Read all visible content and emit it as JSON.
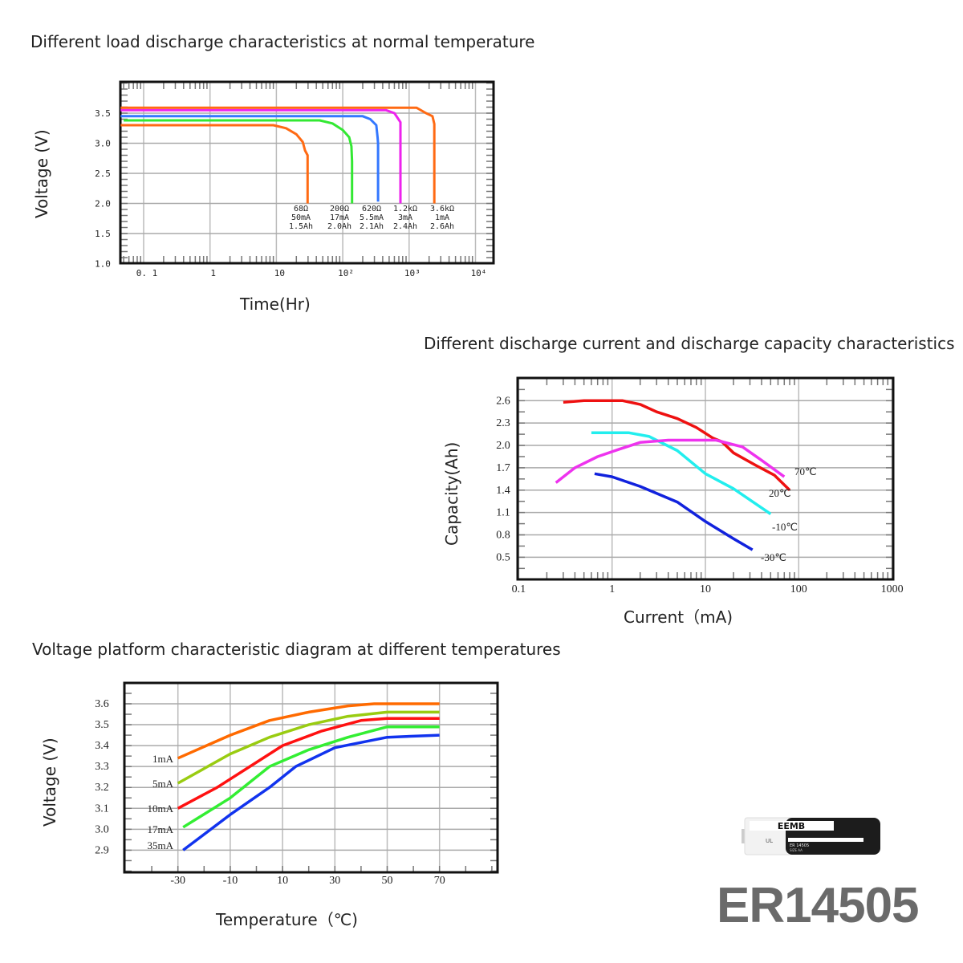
{
  "product_name": "ER14505",
  "battery_image": {
    "brand": "EEMB",
    "model": "ER 14505",
    "size": "SIZE AA",
    "voltage": "3.6 Volts",
    "tagline": "NEW CONCEPT OF LITHIUM BATTERY"
  },
  "chart_data": [
    {
      "type": "line",
      "title": "Different load discharge characteristics at normal temperature",
      "xlabel": "Time(Hr)",
      "ylabel": "Voltage  (V)",
      "x_scale": "log",
      "xlim": [
        0.045,
        13000
      ],
      "ylim": [
        1.0,
        4.0
      ],
      "x_ticks": [
        0.1,
        1,
        10,
        100,
        1000,
        10000
      ],
      "x_tick_labels": [
        "0. 1",
        "1",
        "10",
        "10²",
        "10³",
        "10⁴"
      ],
      "y_ticks": [
        3.5,
        3.0,
        2.5,
        2.0,
        1.5,
        1.0
      ],
      "y_tick_labels": [
        "3.5",
        "3.0",
        "2.5",
        "2.0",
        "1.5",
        "1.0"
      ],
      "grid": true,
      "series": [
        {
          "label": [
            "68Ω",
            "50mA",
            "1.5Ah"
          ],
          "color": "#ff6a13",
          "points": [
            [
              0.045,
              3.3
            ],
            [
              9,
              3.3
            ],
            [
              14,
              3.25
            ],
            [
              20,
              3.15
            ],
            [
              25,
              3.02
            ],
            [
              27,
              2.88
            ],
            [
              29.5,
              2.8
            ],
            [
              29.5,
              2.0
            ]
          ]
        },
        {
          "label": [
            "200Ω",
            "17mA",
            "2.0Ah"
          ],
          "color": "#33e833",
          "points": [
            [
              0.05,
              3.38
            ],
            [
              45,
              3.38
            ],
            [
              70,
              3.33
            ],
            [
              100,
              3.22
            ],
            [
              125,
              3.1
            ],
            [
              135,
              2.95
            ],
            [
              138,
              2.7
            ],
            [
              138,
              2.0
            ]
          ]
        },
        {
          "label": [
            "620Ω",
            "5.5mA",
            "2.1Ah"
          ],
          "color": "#3377ff",
          "points": [
            [
              0.045,
              3.45
            ],
            [
              200,
              3.45
            ],
            [
              260,
              3.4
            ],
            [
              320,
              3.3
            ],
            [
              335,
              3.1
            ],
            [
              340,
              3.0
            ],
            [
              340,
              2.03
            ]
          ]
        },
        {
          "label": [
            "1.2kΩ",
            "3mA",
            "2.4Ah"
          ],
          "color": "#ee22ee",
          "points": [
            [
              0.045,
              3.55
            ],
            [
              450,
              3.55
            ],
            [
              600,
              3.5
            ],
            [
              740,
              3.35
            ],
            [
              740,
              2.0
            ]
          ]
        },
        {
          "label": [
            "3.6kΩ",
            "1mA",
            "2.6Ah"
          ],
          "color": "#ff6a13",
          "points": [
            [
              0.045,
              3.59
            ],
            [
              1300,
              3.59
            ],
            [
              1800,
              3.5
            ],
            [
              2250,
              3.45
            ],
            [
              2400,
              3.32
            ],
            [
              2400,
              2.0
            ]
          ]
        }
      ]
    },
    {
      "type": "line",
      "title": "Different discharge current and discharge capacity characteristics",
      "xlabel": "Current（mA)",
      "ylabel": "Capacity(Ah)",
      "x_scale": "log",
      "xlim": [
        0.1,
        1000
      ],
      "ylim": [
        0.2,
        2.9
      ],
      "x_ticks": [
        0.1,
        1,
        10,
        100,
        1000
      ],
      "x_tick_labels": [
        "0.1",
        "1",
        "10",
        "100",
        "1000"
      ],
      "y_ticks": [
        2.6,
        2.3,
        2.0,
        1.7,
        1.4,
        1.1,
        0.8,
        0.5
      ],
      "y_tick_labels": [
        "2.6",
        "2.3",
        "2.0",
        "1.7",
        "1.4",
        "1.1",
        "0.8",
        "0.5"
      ],
      "grid": true,
      "series": [
        {
          "name": "20℃",
          "color": "#ee1111",
          "points": [
            [
              0.3,
              2.58
            ],
            [
              0.5,
              2.6
            ],
            [
              1.3,
              2.6
            ],
            [
              2,
              2.55
            ],
            [
              3,
              2.45
            ],
            [
              5,
              2.36
            ],
            [
              8,
              2.24
            ],
            [
              12,
              2.1
            ],
            [
              15,
              2.05
            ],
            [
              20,
              1.9
            ],
            [
              35,
              1.73
            ],
            [
              55,
              1.6
            ],
            [
              80,
              1.4
            ]
          ]
        },
        {
          "name": "-10℃",
          "color": "#22eeee",
          "points": [
            [
              0.6,
              2.17
            ],
            [
              1.5,
              2.17
            ],
            [
              2.5,
              2.12
            ],
            [
              5,
              1.93
            ],
            [
              10,
              1.62
            ],
            [
              20,
              1.42
            ],
            [
              50,
              1.08
            ]
          ]
        },
        {
          "name": "70℃",
          "color": "#ee33ee",
          "points": [
            [
              0.25,
              1.5
            ],
            [
              0.4,
              1.7
            ],
            [
              0.7,
              1.85
            ],
            [
              1.2,
              1.95
            ],
            [
              2,
              2.04
            ],
            [
              4,
              2.07
            ],
            [
              13,
              2.07
            ],
            [
              25,
              1.98
            ],
            [
              40,
              1.8
            ],
            [
              70,
              1.58
            ]
          ]
        },
        {
          "name": "-30℃",
          "color": "#1122dd",
          "points": [
            [
              0.65,
              1.62
            ],
            [
              1,
              1.58
            ],
            [
              2,
              1.45
            ],
            [
              5,
              1.24
            ],
            [
              10,
              0.98
            ],
            [
              20,
              0.75
            ],
            [
              32,
              0.6
            ]
          ]
        }
      ]
    },
    {
      "type": "line",
      "title": "Voltage platform characteristic diagram at different temperatures",
      "xlabel": "Temperature（℃)",
      "ylabel": "Voltage  (V)",
      "x_scale": "linear",
      "xlim": [
        -50,
        92
      ],
      "ylim": [
        2.8,
        3.7
      ],
      "x_ticks": [
        -30,
        -10,
        10,
        30,
        50,
        70
      ],
      "x_tick_labels": [
        "-30",
        "-10",
        "10",
        "30",
        "50",
        "70"
      ],
      "y_ticks": [
        3.6,
        3.5,
        3.4,
        3.3,
        3.2,
        3.1,
        3.0,
        2.9
      ],
      "y_tick_labels": [
        "3.6",
        "3.5",
        "3.4",
        "3.3",
        "3.2",
        "3.1",
        "3.0",
        "2.9"
      ],
      "grid": true,
      "series": [
        {
          "name": "1mA",
          "color": "#ff6a00",
          "points": [
            [
              -30,
              3.34
            ],
            [
              -10,
              3.45
            ],
            [
              5,
              3.52
            ],
            [
              20,
              3.56
            ],
            [
              35,
              3.59
            ],
            [
              45,
              3.6
            ],
            [
              70,
              3.6
            ]
          ]
        },
        {
          "name": "5mA",
          "color": "#99cc11",
          "points": [
            [
              -30,
              3.22
            ],
            [
              -10,
              3.36
            ],
            [
              5,
              3.44
            ],
            [
              20,
              3.5
            ],
            [
              35,
              3.54
            ],
            [
              50,
              3.56
            ],
            [
              70,
              3.56
            ]
          ]
        },
        {
          "name": "10mA",
          "color": "#ff1111",
          "points": [
            [
              -30,
              3.1
            ],
            [
              -15,
              3.2
            ],
            [
              0,
              3.32
            ],
            [
              10,
              3.4
            ],
            [
              25,
              3.47
            ],
            [
              40,
              3.52
            ],
            [
              50,
              3.53
            ],
            [
              70,
              3.53
            ]
          ]
        },
        {
          "name": "17mA",
          "color": "#33ee33",
          "points": [
            [
              -28,
              3.01
            ],
            [
              -10,
              3.15
            ],
            [
              5,
              3.3
            ],
            [
              20,
              3.38
            ],
            [
              35,
              3.44
            ],
            [
              50,
              3.49
            ],
            [
              70,
              3.49
            ]
          ]
        },
        {
          "name": "35mA",
          "color": "#1133ee",
          "points": [
            [
              -28,
              2.9
            ],
            [
              -10,
              3.07
            ],
            [
              5,
              3.2
            ],
            [
              15,
              3.3
            ],
            [
              30,
              3.39
            ],
            [
              50,
              3.44
            ],
            [
              70,
              3.45
            ]
          ]
        }
      ]
    }
  ]
}
